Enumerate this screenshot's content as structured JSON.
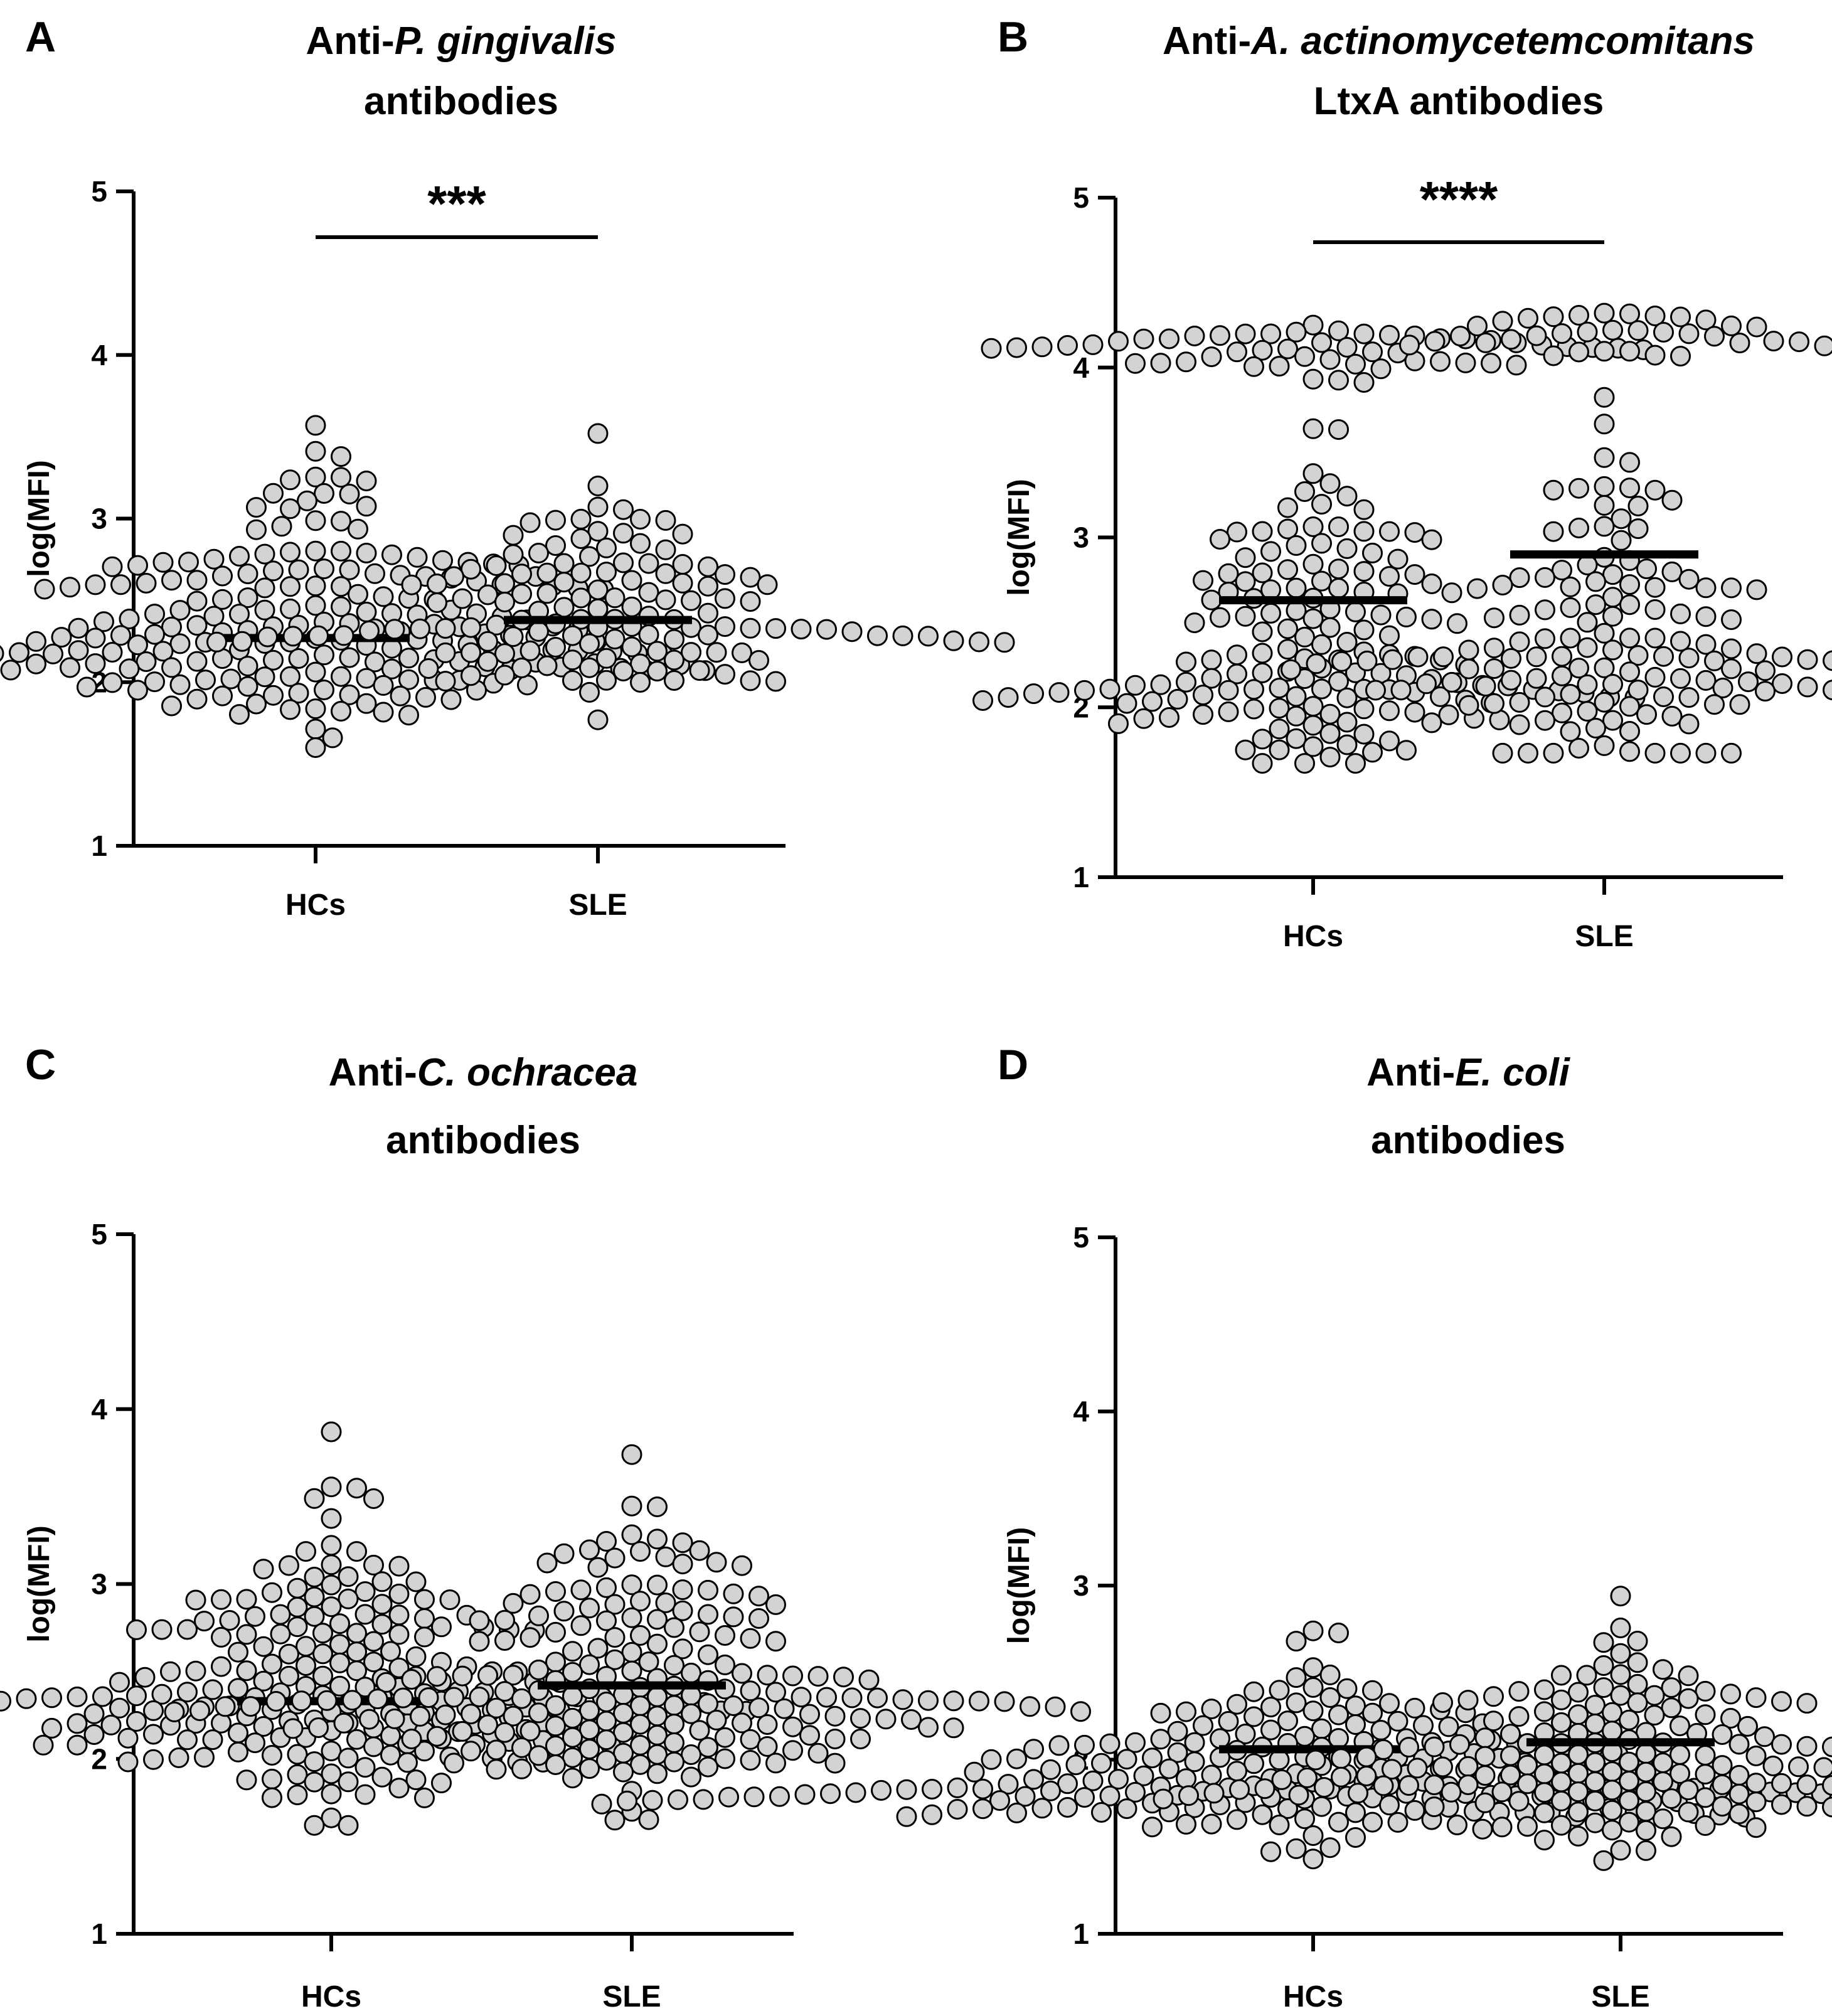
{
  "chart_data": [
    {
      "panel": "A",
      "type": "scatter",
      "title_prefix": "Anti-",
      "title_italic": "P. gingivalis",
      "title_line2": "antibodies",
      "ylabel": "log(MFI)",
      "ylim": [
        1,
        5
      ],
      "yticks": [
        "1",
        "2",
        "3",
        "4",
        "5"
      ],
      "categories": [
        "HCs",
        "SLE"
      ],
      "significance": "***",
      "series": [
        {
          "name": "HCs",
          "mean": 2.27,
          "min": 1.6,
          "max": 3.57,
          "n": 210
        },
        {
          "name": "SLE",
          "mean": 2.38,
          "min": 1.77,
          "max": 3.52,
          "n": 140
        }
      ]
    },
    {
      "panel": "B",
      "type": "scatter",
      "title_prefix": "Anti-",
      "title_italic": "A. actinomycetemcomitans",
      "title_line2": "LtxA antibodies",
      "ylabel": "log(MFI)",
      "ylim": [
        1,
        5
      ],
      "yticks": [
        "1",
        "2",
        "3",
        "4",
        "5"
      ],
      "categories": [
        "HCs",
        "SLE"
      ],
      "significance": "****",
      "series": [
        {
          "name": "HCs",
          "mean": 2.63,
          "min": 1.67,
          "max": 4.25,
          "n": 210
        },
        {
          "name": "SLE",
          "mean": 2.9,
          "min": 1.73,
          "max": 4.32,
          "n": 180
        }
      ]
    },
    {
      "panel": "C",
      "type": "scatter",
      "title_prefix": "Anti-",
      "title_italic": "C. ochracea",
      "title_line2": "antibodies",
      "ylabel": "log(MFI)",
      "ylim": [
        1,
        5
      ],
      "yticks": [
        "1",
        "2",
        "3",
        "4",
        "5"
      ],
      "categories": [
        "HCs",
        "SLE"
      ],
      "significance": "",
      "series": [
        {
          "name": "HCs",
          "mean": 2.33,
          "min": 1.62,
          "max": 3.87,
          "n": 230
        },
        {
          "name": "SLE",
          "mean": 2.42,
          "min": 1.65,
          "max": 3.74,
          "n": 220
        }
      ]
    },
    {
      "panel": "D",
      "type": "scatter",
      "title_prefix": "Anti-",
      "title_italic": "E. coli",
      "title_line2": "antibodies",
      "ylabel": "log(MFI)",
      "ylim": [
        1,
        5
      ],
      "yticks": [
        "1",
        "2",
        "3",
        "4",
        "5"
      ],
      "categories": [
        "HCs",
        "SLE"
      ],
      "significance": "",
      "series": [
        {
          "name": "HCs",
          "mean": 2.06,
          "min": 1.43,
          "max": 2.74,
          "n": 230
        },
        {
          "name": "SLE",
          "mean": 2.1,
          "min": 1.42,
          "max": 2.94,
          "n": 190
        }
      ]
    }
  ]
}
